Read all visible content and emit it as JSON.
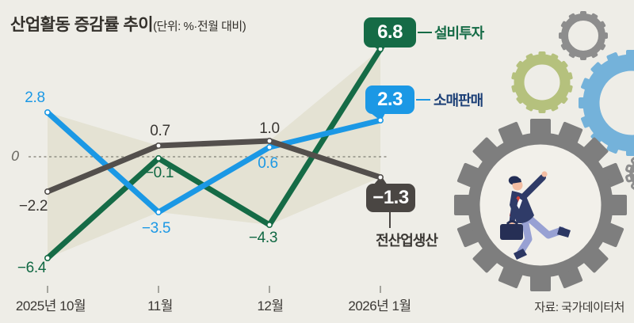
{
  "title": {
    "main": "산업활동 증감률 추이",
    "unit": "(단위: %·전월 대비)"
  },
  "chart_data": {
    "type": "line",
    "categories": [
      "2025년 10월",
      "11월",
      "12월",
      "2026년 1월"
    ],
    "series": [
      {
        "name": "설비투자",
        "color": "#156b46",
        "values": [
          -6.4,
          -0.1,
          -4.3,
          6.8
        ]
      },
      {
        "name": "소매판매",
        "color": "#1b98e5",
        "values": [
          2.8,
          -3.5,
          0.6,
          2.3
        ]
      },
      {
        "name": "전산업생산",
        "color": "#534f4c",
        "values": [
          -2.2,
          0.7,
          1.0,
          -1.3
        ]
      }
    ],
    "title": "산업활동 증감률 추이",
    "unit": "%·전월 대비",
    "ylim": [
      -8,
      8
    ],
    "zero_line": true,
    "band": "shaded min-max envelope between series"
  },
  "point_labels": {
    "seolbi": [
      "−6.4",
      "−0.1",
      "−4.3"
    ],
    "somae": [
      "2.8",
      "−3.5",
      "0.6"
    ],
    "jeonsan": [
      "−2.2",
      "0.7",
      "1.0"
    ]
  },
  "badges": {
    "seolbi": {
      "value": "6.8",
      "label": "설비투자"
    },
    "somae": {
      "value": "2.3",
      "label": "소매판매"
    },
    "jeonsan": {
      "value": "−1.3",
      "label": "전산업생산"
    }
  },
  "axis": {
    "zero": "0",
    "months": [
      "2025년 10월",
      "11월",
      "12월",
      "2026년 1월"
    ]
  },
  "source": "자료: 국가데이터처",
  "illustration": {
    "gears": "gear-icons",
    "figure": "businessman-walking-inside-gear"
  },
  "colors": {
    "green": "#156b46",
    "blue": "#1b98e5",
    "gray_line": "#534f4c",
    "badge_gray": "#4a4643",
    "navy_label": "#1d4077",
    "band": "#e4e2d3",
    "background": "#eeede7",
    "gear_gray": "#8d8d8d",
    "gear_olive": "#b5c17d",
    "gear_blue": "#74b2da",
    "gear_large": "#7e7e7e"
  }
}
